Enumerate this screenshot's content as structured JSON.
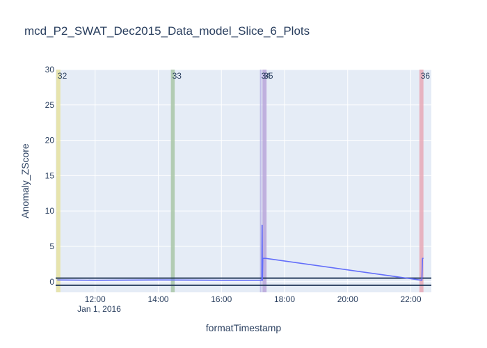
{
  "chart_data": {
    "type": "line",
    "title": "mcd_P2_SWAT_Dec2015_Data_model_Slice_6_Plots",
    "xlabel": "formatTimestamp",
    "ylabel": "Anomaly_ZScore",
    "x_unit": "hours",
    "x_date_label": "Jan 1, 2016",
    "xlim": [
      10.75,
      22.65
    ],
    "ylim": [
      -1.5,
      30
    ],
    "x_ticks": [
      {
        "value": 12,
        "label": "12:00"
      },
      {
        "value": 14,
        "label": "14:00"
      },
      {
        "value": 16,
        "label": "16:00"
      },
      {
        "value": 18,
        "label": "18:00"
      },
      {
        "value": 20,
        "label": "20:00"
      },
      {
        "value": 22,
        "label": "22:00"
      }
    ],
    "y_ticks": [
      0,
      5,
      10,
      15,
      20,
      25,
      30
    ],
    "grid": true,
    "colors": {
      "plot_bg": "#e5ecf6",
      "grid": "#ffffff",
      "series": "#636efa",
      "thresholds": "#2a3f5f",
      "text": "#2a3f5f"
    },
    "series": [
      {
        "color": "#636efa",
        "x": [
          10.8,
          12.0,
          14.0,
          16.0,
          17.28,
          17.29,
          17.3,
          17.31,
          17.34,
          17.4,
          22.35,
          22.37,
          22.4
        ],
        "y": [
          0.25,
          0.2,
          0.25,
          0.2,
          0.2,
          8.0,
          0.2,
          3.3,
          3.3,
          3.3,
          0.2,
          3.3,
          3.3
        ]
      }
    ],
    "threshold_lines": [
      0.5,
      -0.5
    ],
    "regions": [
      {
        "label": "32",
        "x0": 10.77,
        "x1": 10.9,
        "color": "#e8e3a0"
      },
      {
        "label": "33",
        "x0": 14.4,
        "x1": 14.52,
        "color": "#a9c7a7"
      },
      {
        "label": "34",
        "x0": 17.22,
        "x1": 17.27,
        "color": "#b9b5e6"
      },
      {
        "label": "35",
        "x0": 17.3,
        "x1": 17.43,
        "color": "#b9a6d9"
      },
      {
        "label": "36",
        "x0": 22.27,
        "x1": 22.4,
        "color": "#e7a9b6"
      }
    ]
  }
}
